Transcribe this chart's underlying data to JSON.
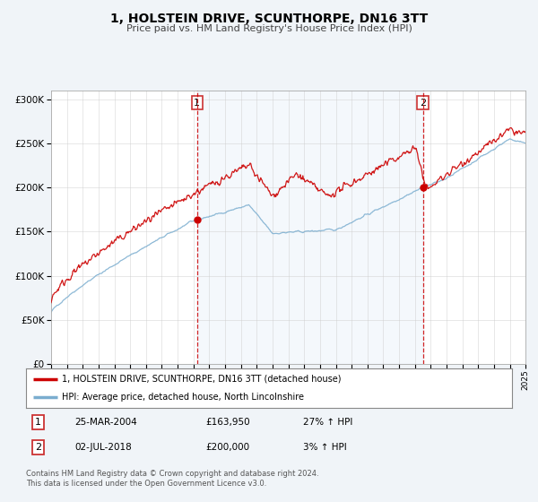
{
  "title": "1, HOLSTEIN DRIVE, SCUNTHORPE, DN16 3TT",
  "subtitle": "Price paid vs. HM Land Registry's House Price Index (HPI)",
  "legend_line1": "1, HOLSTEIN DRIVE, SCUNTHORPE, DN16 3TT (detached house)",
  "legend_line2": "HPI: Average price, detached house, North Lincolnshire",
  "table_rows": [
    {
      "num": "1",
      "date": "25-MAR-2004",
      "price": "£163,950",
      "hpi": "27% ↑ HPI"
    },
    {
      "num": "2",
      "date": "02-JUL-2018",
      "price": "£200,000",
      "hpi": "3% ↑ HPI"
    }
  ],
  "sale1_year": 2004.23,
  "sale1_price": 163950,
  "sale2_year": 2018.5,
  "sale2_price": 200000,
  "red_line_color": "#cc0000",
  "blue_line_color": "#7aadcf",
  "background_color": "#f0f4f8",
  "plot_bg_color": "#ffffff",
  "dashed_line_color": "#cc0000",
  "ylim_max": 310000,
  "ylim_min": 0,
  "xlim_min": 1995,
  "xlim_max": 2025,
  "footer_text": "Contains HM Land Registry data © Crown copyright and database right 2024.\nThis data is licensed under the Open Government Licence v3.0."
}
